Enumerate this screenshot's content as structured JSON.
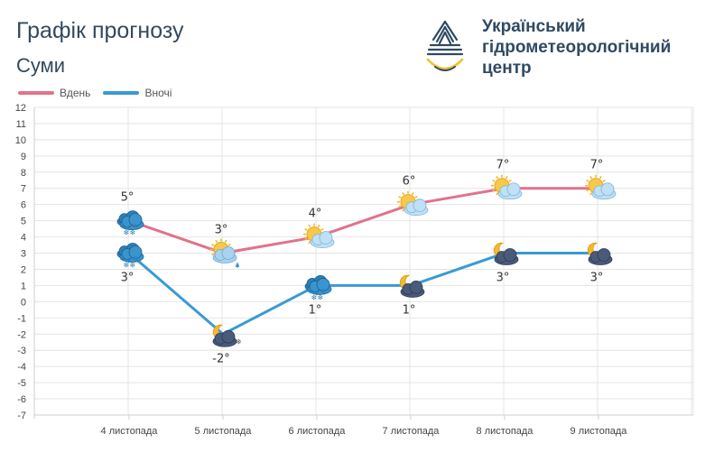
{
  "header": {
    "title": "Графік прогнозу",
    "city": "Суми"
  },
  "organization": {
    "name_lines": [
      "Український",
      "гідрометеорологічний",
      "центр"
    ],
    "logo_icon": "ukrhydromet-logo-icon",
    "colors": {
      "dark": "#2f4a63",
      "accent": "#f2c230"
    }
  },
  "chart_data": {
    "type": "line",
    "categories": [
      "4 листопада",
      "5 листопада",
      "6 листопада",
      "7 листопада",
      "8 листопада",
      "9 листопада"
    ],
    "series": [
      {
        "name": "Вдень",
        "values": [
          5,
          3,
          4,
          6,
          7,
          7
        ],
        "color": "#e0738a",
        "labels": [
          "5°",
          "3°",
          "4°",
          "6°",
          "7°",
          "7°"
        ],
        "icons": [
          "cloud-snow-icon",
          "sun-cloud-rain-icon",
          "sun-cloud-icon",
          "sun-cloud-icon",
          "sun-cloud-icon",
          "sun-cloud-icon"
        ]
      },
      {
        "name": "Вночі",
        "values": [
          3,
          -2,
          1,
          1,
          3,
          3
        ],
        "color": "#3a9ad3",
        "labels": [
          "3°",
          "-2°",
          "1°",
          "1°",
          "3°",
          "3°"
        ],
        "icons": [
          "cloud-snow-icon",
          "moon-cloud-snow-icon",
          "cloud-snow-icon",
          "moon-cloud-icon",
          "moon-cloud-icon",
          "moon-cloud-icon"
        ]
      }
    ],
    "yticks": [
      "12",
      "11",
      "10",
      "9",
      "8",
      "7",
      "6",
      "5",
      "4",
      "3",
      "2",
      "1",
      "0",
      "-1",
      "-2",
      "-3",
      "-4",
      "-5",
      "-6",
      "-7"
    ],
    "ylim": [
      -7,
      12
    ],
    "grid": true,
    "legend": "top-left"
  }
}
